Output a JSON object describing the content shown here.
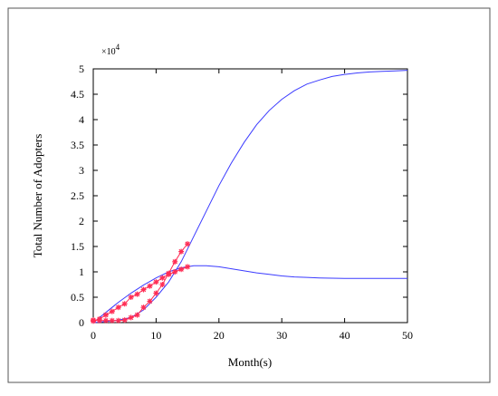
{
  "chart_data": {
    "type": "line",
    "title": "",
    "xlabel": "Month(s)",
    "ylabel": "Total Number of Adopters",
    "y_multiplier_label": "×10",
    "y_multiplier_exponent": "4",
    "xlim": [
      0,
      50
    ],
    "ylim": [
      0,
      5
    ],
    "x_ticks": [
      "0",
      "10",
      "20",
      "30",
      "40",
      "50"
    ],
    "y_ticks": [
      "0",
      "0.5",
      "1",
      "1.5",
      "2",
      "2.5",
      "3",
      "3.5",
      "4",
      "4.5",
      "5"
    ],
    "grid": false,
    "legend": "none",
    "colors": {
      "line": "#3b3bff",
      "marker": "#ff2d55"
    },
    "series": [
      {
        "style": "line",
        "x": [
          0,
          2,
          4,
          6,
          8,
          10,
          12,
          14,
          16,
          18,
          20,
          22,
          24,
          26,
          28,
          30,
          32,
          34,
          36,
          38,
          40,
          42,
          44,
          46,
          48,
          50
        ],
        "y": [
          0.0,
          0.02,
          0.05,
          0.1,
          0.25,
          0.5,
          0.8,
          1.2,
          1.7,
          2.2,
          2.7,
          3.15,
          3.55,
          3.9,
          4.18,
          4.4,
          4.57,
          4.7,
          4.78,
          4.85,
          4.89,
          4.92,
          4.94,
          4.95,
          4.96,
          4.97
        ]
      },
      {
        "style": "line",
        "x": [
          0,
          2,
          4,
          6,
          8,
          10,
          12,
          14,
          16,
          18,
          20,
          22,
          24,
          26,
          28,
          30,
          32,
          34,
          36,
          38,
          40,
          42,
          44,
          46,
          48,
          50
        ],
        "y": [
          0.0,
          0.2,
          0.4,
          0.58,
          0.74,
          0.88,
          1.0,
          1.08,
          1.12,
          1.12,
          1.1,
          1.06,
          1.02,
          0.98,
          0.95,
          0.92,
          0.9,
          0.89,
          0.88,
          0.875,
          0.87,
          0.87,
          0.87,
          0.87,
          0.87,
          0.87
        ]
      },
      {
        "style": "markers",
        "x": [
          0,
          1,
          2,
          3,
          4,
          5,
          6,
          7,
          8,
          9,
          10,
          11,
          12,
          13,
          14,
          15
        ],
        "y": [
          0.03,
          0.07,
          0.15,
          0.22,
          0.3,
          0.37,
          0.5,
          0.56,
          0.65,
          0.72,
          0.8,
          0.88,
          0.95,
          1.0,
          1.05,
          1.1
        ]
      },
      {
        "style": "markers",
        "x": [
          0,
          1,
          2,
          3,
          4,
          5,
          6,
          7,
          8,
          9,
          10,
          11,
          12,
          13,
          14,
          15
        ],
        "y": [
          0.05,
          0.04,
          0.04,
          0.04,
          0.04,
          0.05,
          0.1,
          0.15,
          0.3,
          0.42,
          0.58,
          0.75,
          0.97,
          1.2,
          1.4,
          1.55
        ]
      }
    ]
  }
}
